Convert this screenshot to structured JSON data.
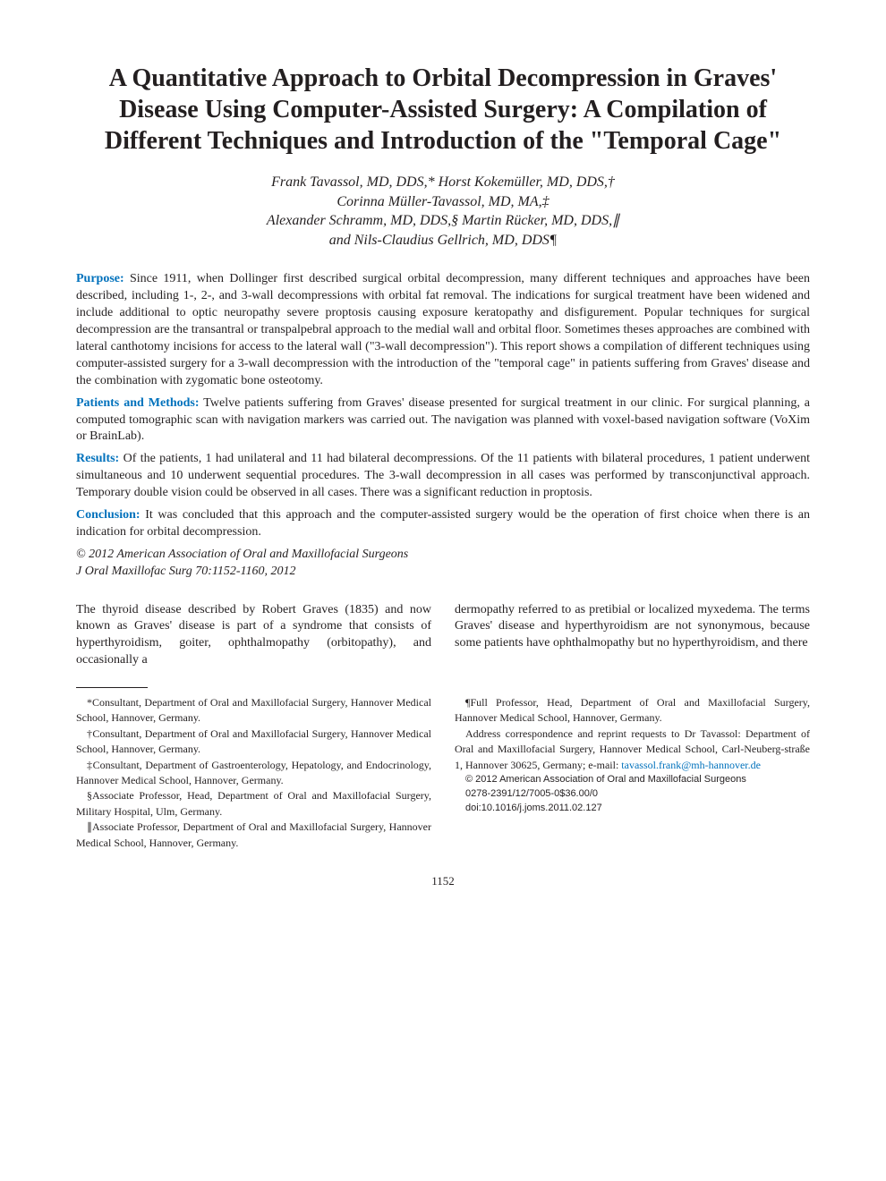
{
  "title_fontsize": 28,
  "authors_fontsize": 16,
  "abstract_fontsize": 14,
  "body_fontsize": 14,
  "affil_fontsize": 12,
  "small_fontsize": 11,
  "pagenum_fontsize": 13,
  "accent_color": "#0071bc",
  "text_color": "#231f20",
  "title": "A Quantitative Approach to Orbital Decompression in Graves' Disease Using Computer-Assisted Surgery: A Compilation of Different Techniques and Introduction of the \"Temporal Cage\"",
  "authors_line1": "Frank Tavassol, MD, DDS,* Horst Kokemüller, MD, DDS,†",
  "authors_line2": "Corinna Müller-Tavassol, MD, MA,‡",
  "authors_line3": "Alexander Schramm, MD, DDS,§ Martin Rücker, MD, DDS,∥",
  "authors_line4": "and Nils-Claudius Gellrich, MD, DDS¶",
  "abstract": {
    "purpose_h": "Purpose:",
    "purpose": "Since 1911, when Dollinger first described surgical orbital decompression, many different techniques and approaches have been described, including 1-, 2-, and 3-wall decompressions with orbital fat removal. The indications for surgical treatment have been widened and include additional to optic neuropathy severe proptosis causing exposure keratopathy and disfigurement. Popular techniques for surgical decompression are the transantral or transpalpebral approach to the medial wall and orbital floor. Sometimes theses approaches are combined with lateral canthotomy incisions for access to the lateral wall (\"3-wall decompression\"). This report shows a compilation of different techniques using computer-assisted surgery for a 3-wall decompression with the introduction of the \"temporal cage\" in patients suffering from Graves' disease and the combination with zygomatic bone osteotomy.",
    "patients_h": "Patients and Methods:",
    "patients": "Twelve patients suffering from Graves' disease presented for surgical treatment in our clinic. For surgical planning, a computed tomographic scan with navigation markers was carried out. The navigation was planned with voxel-based navigation software (VoXim or BrainLab).",
    "results_h": "Results:",
    "results": "Of the patients, 1 had unilateral and 11 had bilateral decompressions. Of the 11 patients with bilateral procedures, 1 patient underwent simultaneous and 10 underwent sequential procedures. The 3-wall decompression in all cases was performed by transconjunctival approach. Temporary double vision could be observed in all cases. There was a significant reduction in proptosis.",
    "conclusion_h": "Conclusion:",
    "conclusion": "It was concluded that this approach and the computer-assisted surgery would be the operation of first choice when there is an indication for orbital decompression."
  },
  "copyright1": "© 2012 American Association of Oral and Maxillofacial Surgeons",
  "copyright2": "J Oral Maxillofac Surg 70:1152-1160, 2012",
  "body_left": "The thyroid disease described by Robert Graves (1835) and now known as Graves' disease is part of a syndrome that consists of hyperthyroidism, goiter, ophthalmopathy (orbitopathy), and occasionally a",
  "body_right": "dermopathy referred to as pretibial or localized myxedema. The terms Graves' disease and hyperthyroidism are not synonymous, because some patients have ophthalmopathy but no hyperthyroidism, and there",
  "affil": {
    "a1": "*Consultant, Department of Oral and Maxillofacial Surgery, Hannover Medical School, Hannover, Germany.",
    "a2": "†Consultant, Department of Oral and Maxillofacial Surgery, Hannover Medical School, Hannover, Germany.",
    "a3": "‡Consultant, Department of Gastroenterology, Hepatology, and Endocrinology, Hannover Medical School, Hannover, Germany.",
    "a4": "§Associate Professor, Head, Department of Oral and Maxillofacial Surgery, Military Hospital, Ulm, Germany.",
    "a5": "∥Associate Professor, Department of Oral and Maxillofacial Surgery, Hannover Medical School, Hannover, Germany.",
    "a6": "¶Full Professor, Head, Department of Oral and Maxillofacial Surgery, Hannover Medical School, Hannover, Germany.",
    "corr_pre": "Address correspondence and reprint requests to Dr Tavassol: Department of Oral and Maxillofacial Surgery, Hannover Medical School, Carl-Neuberg-straße 1, Hannover 30625, Germany; e-mail: ",
    "email": "tavassol.frank@mh-hannover.de",
    "s1": "© 2012 American Association of Oral and Maxillofacial Surgeons",
    "s2": "0278-2391/12/7005-0$36.00/0",
    "s3": "doi:10.1016/j.joms.2011.02.127"
  },
  "pagenum": "1152"
}
